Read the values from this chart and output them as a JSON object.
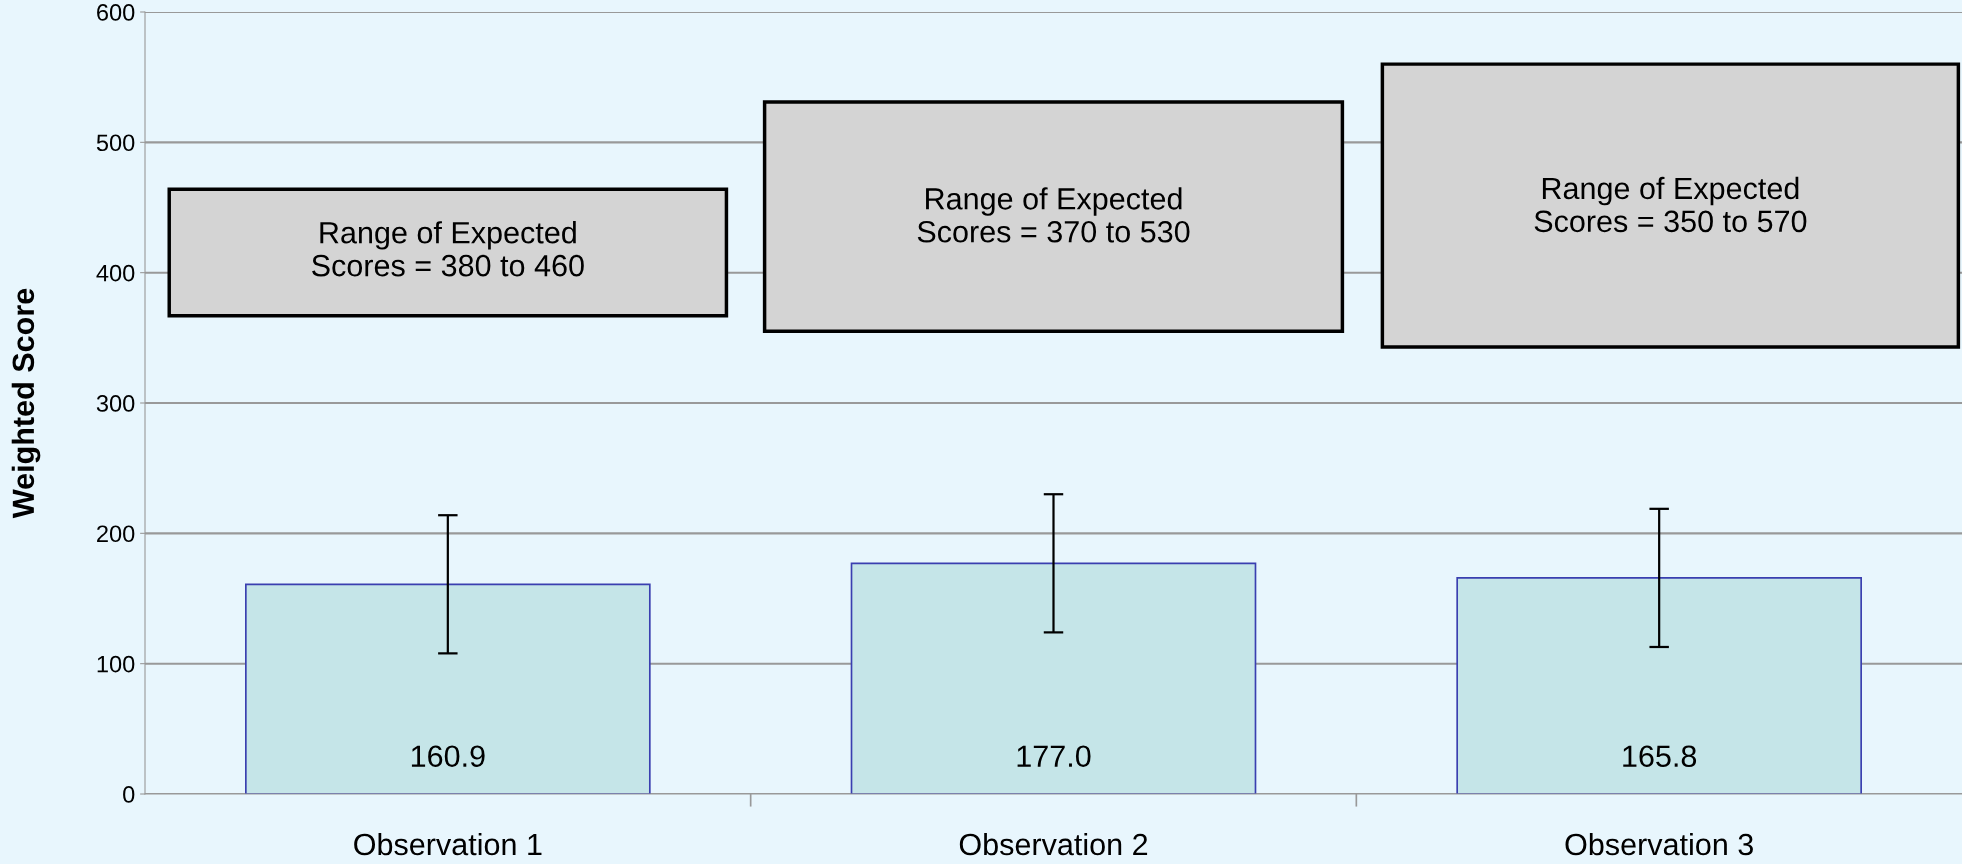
{
  "chart_data": {
    "type": "bar",
    "ylabel": "Weighted Score",
    "categories": [
      "Observation 1",
      "Observation 2",
      "Observation 3"
    ],
    "values": [
      160.9,
      177.0,
      165.8
    ],
    "color": "#c5e5e8",
    "errors": [
      53,
      53,
      53
    ],
    "value_labels": [
      "160.9",
      "177.0",
      "165.8"
    ],
    "ylim": [
      0,
      600
    ],
    "yticks": [
      0,
      100,
      200,
      300,
      400,
      500,
      600
    ],
    "grid": "y",
    "annotations": [
      "Range of Expected\nScores = 380 to 460",
      "Range of Expected\nScores = 370 to 530",
      "Range of Expected\nScores = 350 to 570"
    ]
  }
}
